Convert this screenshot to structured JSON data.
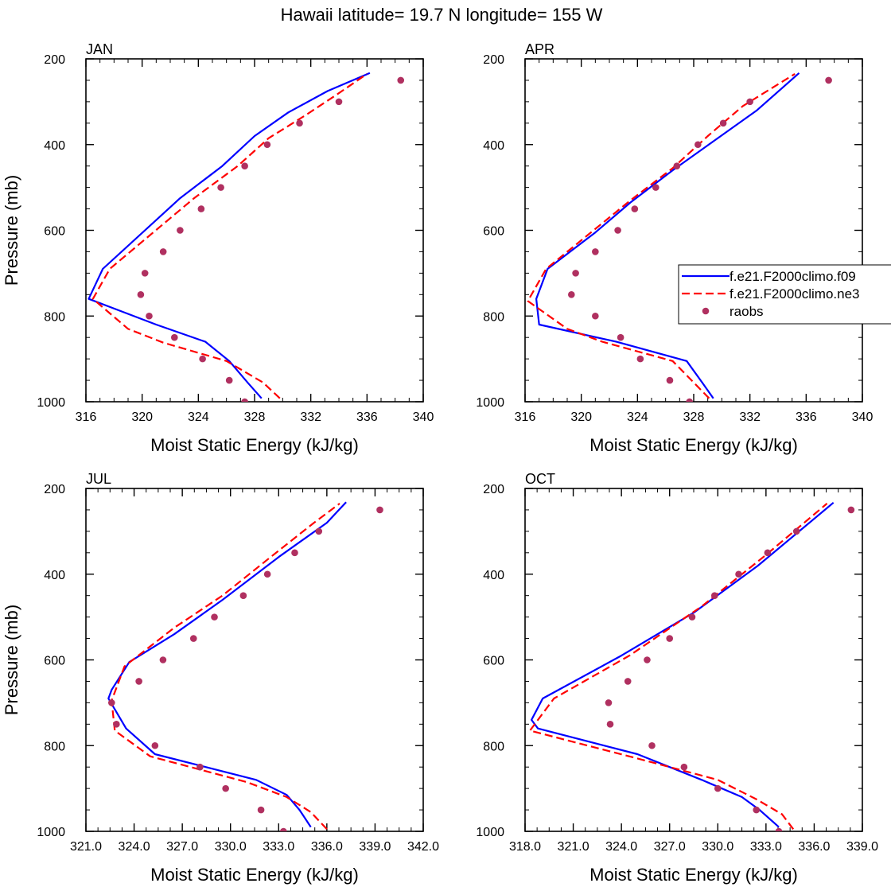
{
  "figure": {
    "title": "Hawaii  latitude= 19.7 N longitude= 155 W"
  },
  "colors": {
    "model1": "#0000ff",
    "model2": "#ff0000",
    "raobs": "#b03060",
    "axis": "#000000"
  },
  "legend": {
    "placement": "right-middle (inside APR panel, clipped at figure edge)",
    "entries": [
      {
        "label": "f.e21.F2000climo.f09",
        "style": "solid-line",
        "color": "#0000ff"
      },
      {
        "label": "f.e21.F2000climo.ne3",
        "style": "dashed-line",
        "color": "#ff0000"
      },
      {
        "label": "raobs",
        "style": "marker",
        "color": "#b03060"
      }
    ]
  },
  "chart_data": [
    {
      "type": "line",
      "panel_label": "JAN",
      "xlabel": "Moist Static Energy (kJ/kg)",
      "ylabel": "Pressure (mb)",
      "xlim": [
        316,
        340
      ],
      "ylim": [
        1000,
        200
      ],
      "y_inverted": true,
      "grid": false,
      "x_ticks": [
        316,
        320,
        324,
        328,
        332,
        336,
        340
      ],
      "x_tick_labels": [
        "316",
        "320",
        "324",
        "328",
        "332",
        "336",
        "340"
      ],
      "y_ticks": [
        200,
        400,
        600,
        800,
        1000
      ],
      "y_tick_labels": [
        "200",
        "400",
        "600",
        "800",
        "1000"
      ],
      "series": [
        {
          "name": "f.e21.F2000climo.f09",
          "style": "solid",
          "color": "#0000ff",
          "x": [
            328.5,
            327.5,
            326.2,
            324.5,
            321.0,
            316.2,
            317.2,
            322.7,
            325.7,
            328.0,
            330.4,
            333.2,
            336.2
          ],
          "y": [
            992,
            955,
            905,
            860,
            820,
            760,
            690,
            525,
            450,
            380,
            325,
            275,
            233
          ]
        },
        {
          "name": "f.e21.F2000climo.ne3",
          "style": "dashed",
          "color": "#ff0000",
          "x": [
            329.8,
            328.6,
            326.0,
            321.5,
            319.0,
            316.5,
            317.7,
            323.7,
            326.8,
            329.0,
            331.7,
            334.0,
            336.0
          ],
          "y": [
            992,
            955,
            905,
            862,
            830,
            760,
            690,
            525,
            450,
            385,
            330,
            280,
            235
          ]
        },
        {
          "name": "raobs",
          "style": "markers",
          "color": "#b03060",
          "x": [
            338.4,
            334.0,
            331.2,
            328.9,
            327.3,
            325.6,
            324.2,
            322.7,
            321.5,
            320.2,
            319.9,
            320.5,
            322.3,
            324.3,
            326.2,
            327.3
          ],
          "y": [
            250,
            300,
            350,
            400,
            450,
            500,
            550,
            600,
            650,
            700,
            750,
            800,
            850,
            900,
            950,
            1000
          ]
        }
      ]
    },
    {
      "type": "line",
      "panel_label": "APR",
      "xlabel": "Moist Static Energy (kJ/kg)",
      "ylabel": "",
      "xlim": [
        316,
        340
      ],
      "ylim": [
        1000,
        200
      ],
      "y_inverted": true,
      "grid": false,
      "x_ticks": [
        316,
        320,
        324,
        328,
        332,
        336,
        340
      ],
      "x_tick_labels": [
        "316",
        "320",
        "324",
        "328",
        "332",
        "336",
        "340"
      ],
      "y_ticks": [
        200,
        400,
        600,
        800,
        1000
      ],
      "y_tick_labels": [
        "200",
        "400",
        "600",
        "800",
        "1000"
      ],
      "series": [
        {
          "name": "f.e21.F2000climo.f09",
          "style": "solid",
          "color": "#0000ff",
          "x": [
            329.4,
            328.6,
            327.5,
            322.5,
            317.0,
            316.8,
            317.6,
            321.0,
            323.5,
            326.5,
            329.5,
            332.5,
            335.5
          ],
          "y": [
            992,
            955,
            905,
            860,
            820,
            760,
            690,
            605,
            535,
            460,
            390,
            320,
            233
          ]
        },
        {
          "name": "f.e21.F2000climo.ne3",
          "style": "dashed",
          "color": "#ff0000",
          "x": [
            329.1,
            328.0,
            326.5,
            321.5,
            319.0,
            316.2,
            317.5,
            320.5,
            323.5,
            326.5,
            329.0,
            331.5,
            335.2
          ],
          "y": [
            992,
            955,
            905,
            860,
            830,
            765,
            690,
            610,
            530,
            455,
            380,
            310,
            235
          ]
        },
        {
          "name": "raobs",
          "style": "markers",
          "color": "#b03060",
          "x": [
            337.6,
            332.0,
            330.1,
            328.3,
            326.8,
            325.3,
            323.8,
            322.6,
            321.0,
            319.6,
            319.3,
            321.0,
            322.8,
            324.2,
            326.3,
            327.7
          ],
          "y": [
            250,
            300,
            350,
            400,
            450,
            500,
            550,
            600,
            650,
            700,
            750,
            800,
            850,
            900,
            950,
            1000
          ]
        }
      ]
    },
    {
      "type": "line",
      "panel_label": "JUL",
      "xlabel": "Moist Static Energy (kJ/kg)",
      "ylabel": "Pressure (mb)",
      "xlim": [
        321,
        342
      ],
      "ylim": [
        1000,
        200
      ],
      "y_inverted": true,
      "grid": false,
      "x_ticks": [
        321,
        324,
        327,
        330,
        333,
        336,
        339,
        342
      ],
      "x_tick_labels": [
        "321.0",
        "324.0",
        "327.0",
        "330.0",
        "333.0",
        "336.0",
        "339.0",
        "342.0"
      ],
      "y_ticks": [
        200,
        400,
        600,
        800,
        1000
      ],
      "y_tick_labels": [
        "200",
        "400",
        "600",
        "800",
        "1000"
      ],
      "series": [
        {
          "name": "f.e21.F2000climo.f09",
          "style": "solid",
          "color": "#0000ff",
          "x": [
            335.0,
            334.3,
            333.5,
            331.6,
            325.3,
            323.5,
            322.4,
            322.6,
            323.7,
            326.5,
            329.5,
            333.0,
            336.0,
            337.2
          ],
          "y": [
            990,
            950,
            915,
            880,
            820,
            760,
            690,
            670,
            605,
            540,
            460,
            360,
            280,
            232
          ]
        },
        {
          "name": "f.e21.F2000climo.ne3",
          "style": "dashed",
          "color": "#ff0000",
          "x": [
            336.0,
            335.0,
            333.5,
            331.0,
            325.0,
            322.8,
            322.6,
            323.4,
            326.5,
            329.5,
            332.5,
            335.2,
            336.8
          ],
          "y": [
            995,
            955,
            920,
            885,
            825,
            765,
            695,
            615,
            525,
            450,
            360,
            280,
            235
          ]
        },
        {
          "name": "raobs",
          "style": "markers",
          "color": "#b03060",
          "x": [
            339.3,
            335.5,
            334.0,
            332.3,
            330.8,
            329.0,
            327.7,
            325.8,
            324.3,
            322.6,
            322.9,
            325.3,
            328.1,
            329.7,
            331.9,
            333.3
          ],
          "y": [
            250,
            300,
            350,
            400,
            450,
            500,
            550,
            600,
            650,
            700,
            750,
            800,
            850,
            900,
            950,
            1000
          ]
        }
      ]
    },
    {
      "type": "line",
      "panel_label": "OCT",
      "xlabel": "Moist Static Energy (kJ/kg)",
      "ylabel": "",
      "xlim": [
        318,
        339
      ],
      "ylim": [
        1000,
        200
      ],
      "y_inverted": true,
      "grid": false,
      "x_ticks": [
        318,
        321,
        324,
        327,
        330,
        333,
        336,
        339
      ],
      "x_tick_labels": [
        "318.0",
        "321.0",
        "324.0",
        "327.0",
        "330.0",
        "333.0",
        "336.0",
        "339.0"
      ],
      "y_ticks": [
        200,
        400,
        600,
        800,
        1000
      ],
      "y_tick_labels": [
        "200",
        "400",
        "600",
        "800",
        "1000"
      ],
      "series": [
        {
          "name": "f.e21.F2000climo.f09",
          "style": "solid",
          "color": "#0000ff",
          "x": [
            333.8,
            332.6,
            331.5,
            329.0,
            325.0,
            318.8,
            318.4,
            319.1,
            324.0,
            328.5,
            332.5,
            337.2
          ],
          "y": [
            990,
            950,
            920,
            880,
            820,
            760,
            740,
            690,
            590,
            490,
            380,
            233
          ]
        },
        {
          "name": "f.e21.F2000climo.ne3",
          "style": "dashed",
          "color": "#ff0000",
          "x": [
            334.7,
            334.0,
            332.4,
            330.0,
            325.0,
            318.3,
            318.8,
            319.8,
            324.5,
            329.0,
            333.0,
            336.8
          ],
          "y": [
            995,
            960,
            925,
            880,
            830,
            765,
            740,
            690,
            590,
            475,
            355,
            235
          ]
        },
        {
          "name": "raobs",
          "style": "markers",
          "color": "#b03060",
          "x": [
            338.3,
            334.9,
            333.1,
            331.3,
            329.8,
            328.4,
            327.0,
            325.6,
            324.4,
            323.2,
            323.3,
            325.9,
            327.9,
            330.0,
            332.4,
            333.8
          ],
          "y": [
            250,
            300,
            350,
            400,
            450,
            500,
            550,
            600,
            650,
            700,
            750,
            800,
            850,
            900,
            950,
            1000
          ]
        }
      ]
    }
  ]
}
